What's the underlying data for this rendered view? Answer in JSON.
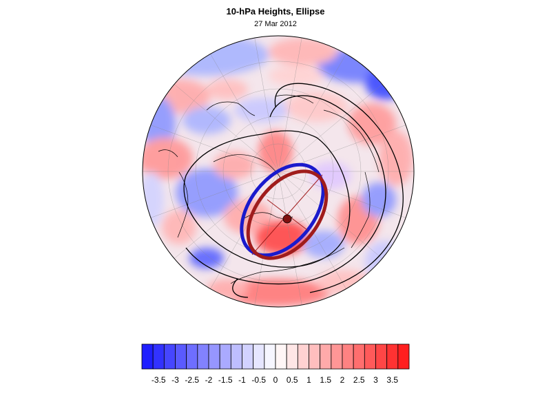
{
  "title": "10-hPa Heights, Ellipse",
  "subtitle": "27 Mar 2012",
  "colorbar": {
    "tick_labels": [
      "-3.5",
      "-3",
      "-2.5",
      "-2",
      "-1.5",
      "-1",
      "-0.5",
      "0",
      "0.5",
      "1",
      "1.5",
      "2",
      "2.5",
      "3",
      "3.5"
    ],
    "colors": [
      "#1f1fff",
      "#3232ff",
      "#4646ff",
      "#5a5aff",
      "#6e6eff",
      "#8282ff",
      "#9696ff",
      "#aaaaff",
      "#bebeff",
      "#d2d2ff",
      "#e6e6ff",
      "#f6f6ff",
      "#fff6f6",
      "#ffe6e6",
      "#ffd2d2",
      "#ffbebe",
      "#ffaaaa",
      "#ff9696",
      "#ff8282",
      "#ff6e6e",
      "#ff5a5a",
      "#ff4646",
      "#ff3232",
      "#ff1f1f"
    ]
  },
  "colors": {
    "ellipse_blue": "#1a1acc",
    "ellipse_red": "#a01c1c",
    "contour": "#000000"
  }
}
